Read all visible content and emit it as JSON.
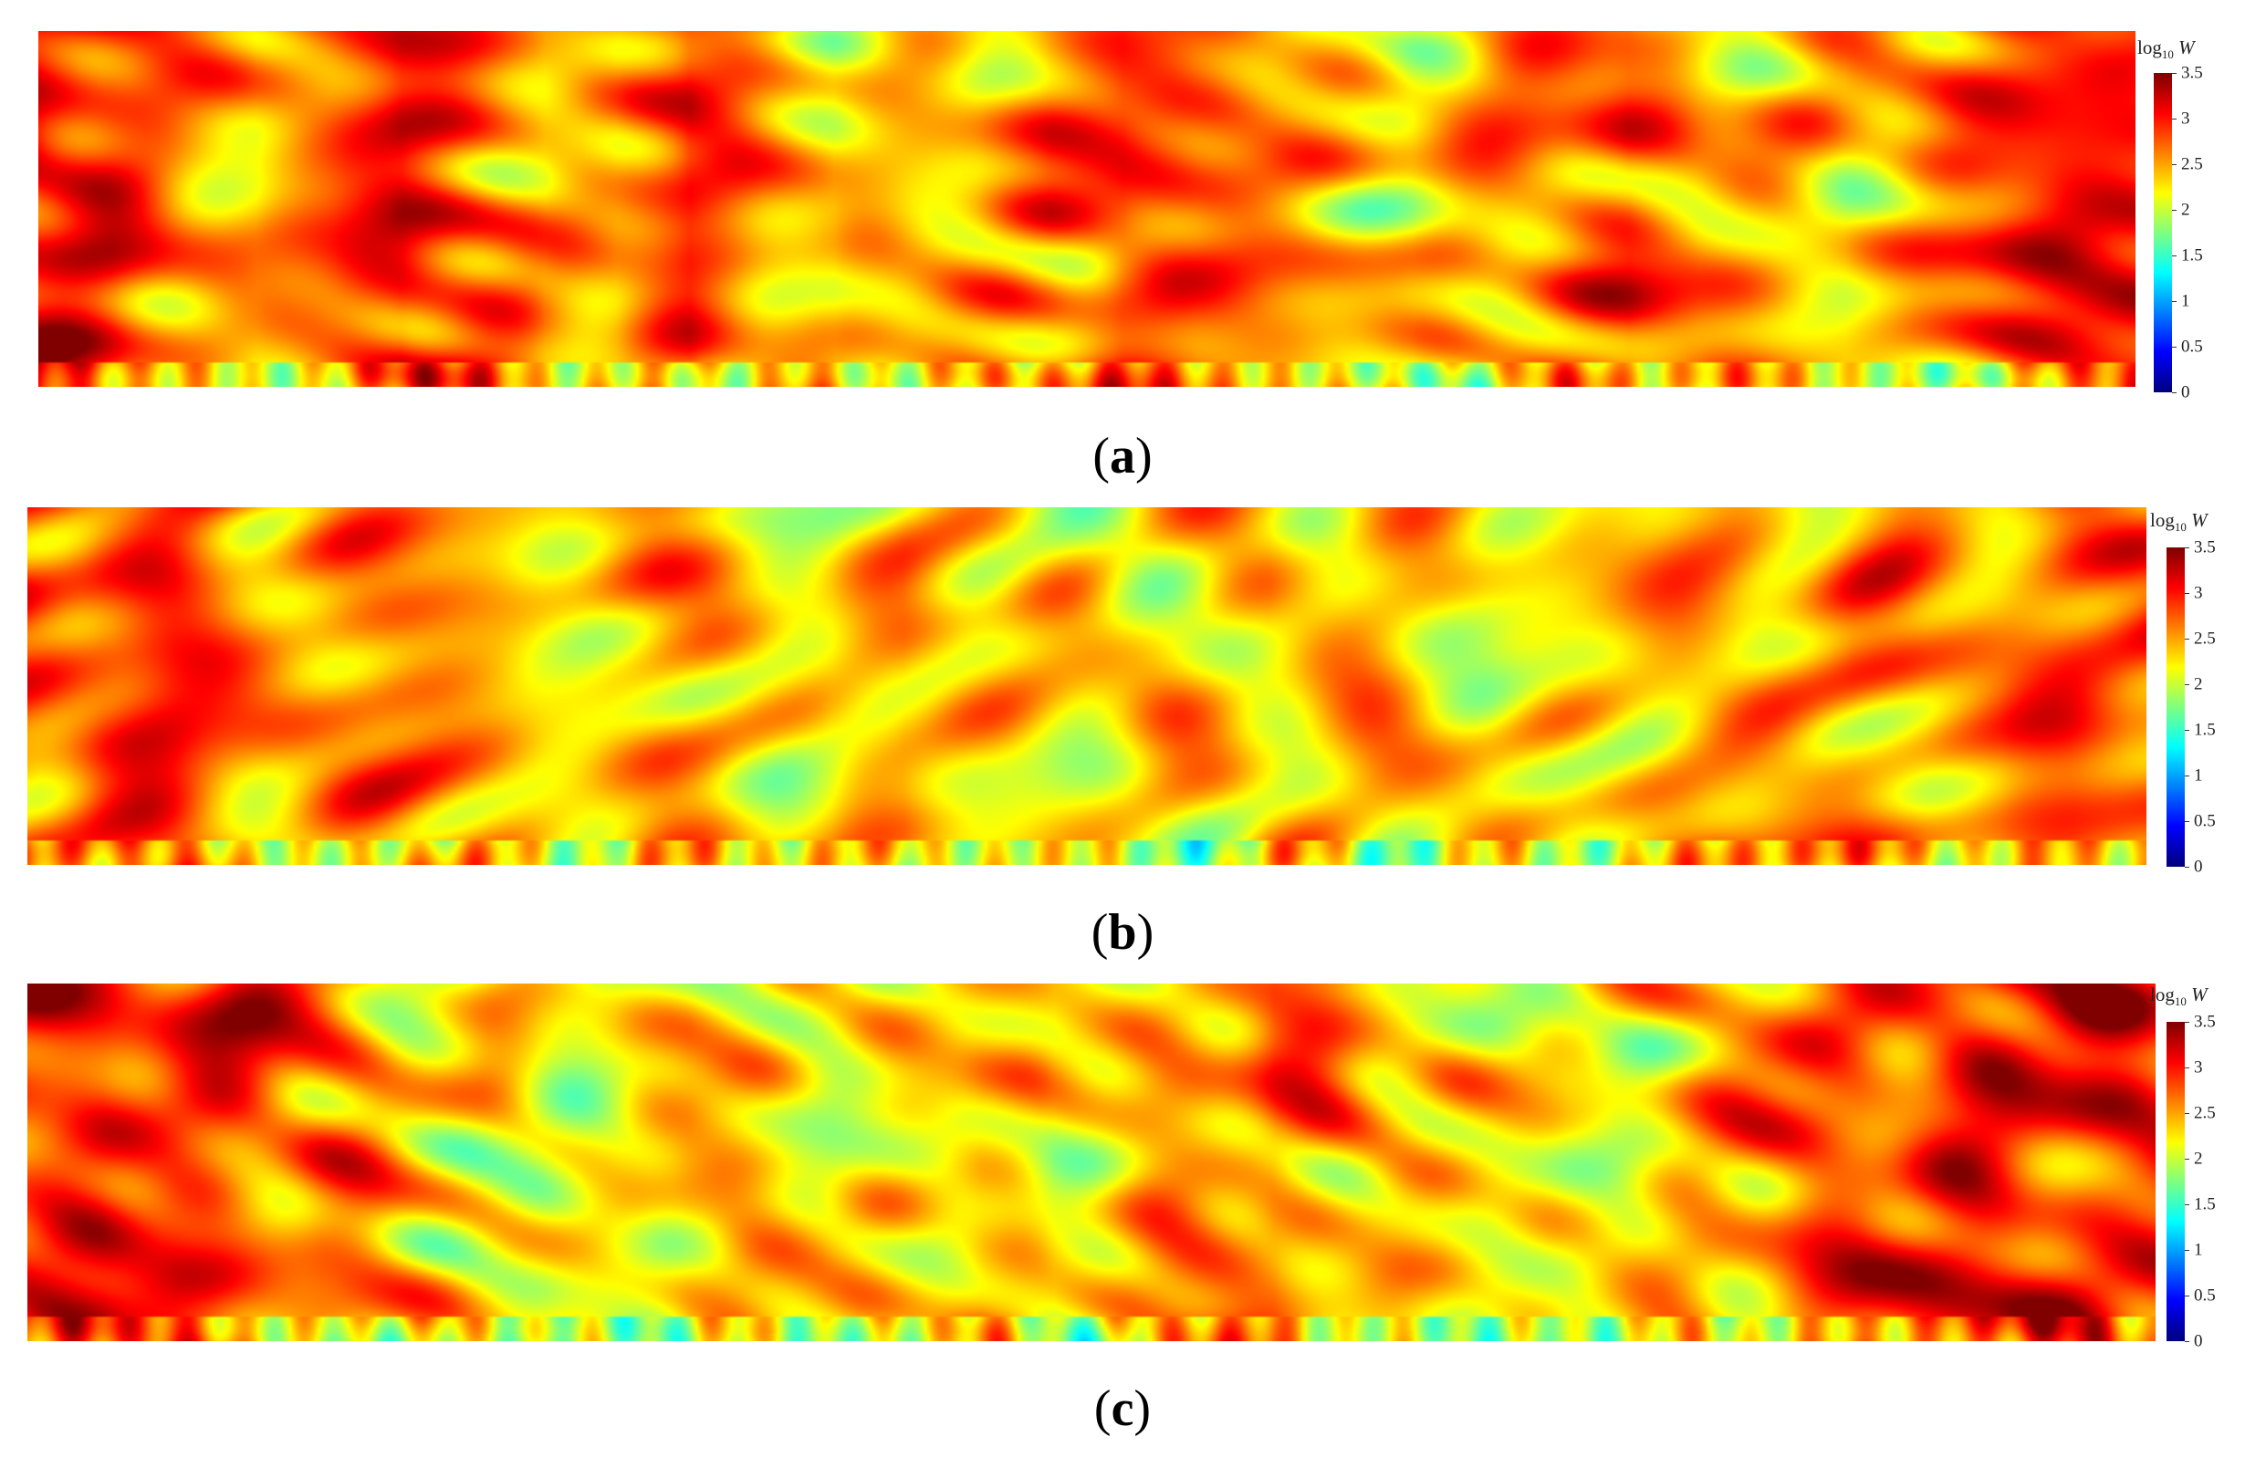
{
  "chart_data": [
    {
      "type": "heatmap",
      "panel_label": "a",
      "colorbar": {
        "title_prefix": "log",
        "title_sub": "10",
        "title_var": "W",
        "range": [
          0,
          3.5
        ],
        "ticks": [
          "0",
          "0.5",
          "1",
          "1.5",
          "2",
          "2.5",
          "3",
          "3.5"
        ],
        "colormap": "jet"
      },
      "profile": [
        3.0,
        2.9,
        2.7,
        2.55,
        2.7,
        2.95,
        2.75,
        2.5,
        2.6,
        2.95,
        2.55,
        2.25,
        2.35,
        2.5,
        2.8,
        2.9,
        2.65,
        2.55,
        2.5,
        2.4,
        2.5,
        2.6,
        2.7,
        2.5,
        2.45,
        2.4,
        2.6,
        2.75,
        2.95,
        3.1
      ],
      "seed": 11
    },
    {
      "type": "heatmap",
      "panel_label": "b",
      "colorbar": {
        "title_prefix": "log",
        "title_sub": "10",
        "title_var": "W",
        "range": [
          0,
          3.5
        ],
        "ticks": [
          "0",
          "0.5",
          "1",
          "1.5",
          "2",
          "2.5",
          "3",
          "3.5"
        ],
        "colormap": "jet"
      },
      "profile": [
        2.75,
        2.85,
        2.8,
        2.7,
        2.6,
        2.55,
        2.45,
        2.4,
        2.4,
        2.3,
        2.35,
        2.3,
        2.45,
        2.35,
        2.3,
        2.25,
        2.3,
        2.45,
        2.35,
        2.3,
        2.25,
        2.3,
        2.35,
        2.4,
        2.55,
        2.6,
        2.5,
        2.55,
        2.75,
        2.85
      ],
      "seed": 23
    },
    {
      "type": "heatmap",
      "panel_label": "c",
      "colorbar": {
        "title_prefix": "log",
        "title_sub": "10",
        "title_var": "W",
        "range": [
          0,
          3.5
        ],
        "ticks": [
          "0",
          "0.5",
          "1",
          "1.5",
          "2",
          "2.5",
          "3",
          "3.5"
        ],
        "colormap": "jet"
      },
      "profile": [
        2.9,
        3.0,
        2.95,
        2.8,
        2.65,
        2.4,
        2.2,
        2.15,
        2.2,
        2.35,
        2.3,
        2.25,
        2.3,
        2.35,
        2.2,
        2.4,
        2.55,
        2.7,
        2.5,
        2.3,
        2.2,
        2.15,
        2.3,
        2.45,
        2.65,
        2.85,
        2.95,
        3.0,
        3.0,
        2.95
      ],
      "seed": 37
    }
  ]
}
